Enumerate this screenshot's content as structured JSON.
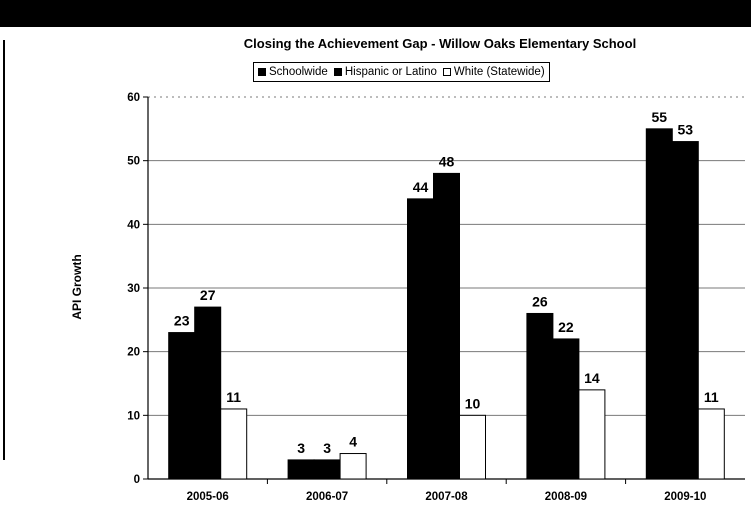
{
  "chart_data": {
    "type": "bar",
    "title": "Closing the Achievement Gap - Willow Oaks Elementary School",
    "xlabel": "",
    "ylabel": "API Growth",
    "ylim": [
      0,
      60
    ],
    "yticks": [
      "0",
      "10",
      "20",
      "30",
      "40",
      "50",
      "60"
    ],
    "categories": [
      "2005-06",
      "2006-07",
      "2007-08",
      "2008-09",
      "2009-10"
    ],
    "grid": true,
    "legend": "top",
    "series": [
      {
        "name": "Schoolwide",
        "values": [
          23,
          3,
          44,
          26,
          55
        ],
        "color": "#000000"
      },
      {
        "name": "Hispanic or Latino",
        "values": [
          27,
          3,
          48,
          22,
          53
        ],
        "color": "#000000"
      },
      {
        "name": "White (Statewide)",
        "values": [
          11,
          4,
          10,
          14,
          11
        ],
        "color": "#ffffff"
      }
    ]
  }
}
